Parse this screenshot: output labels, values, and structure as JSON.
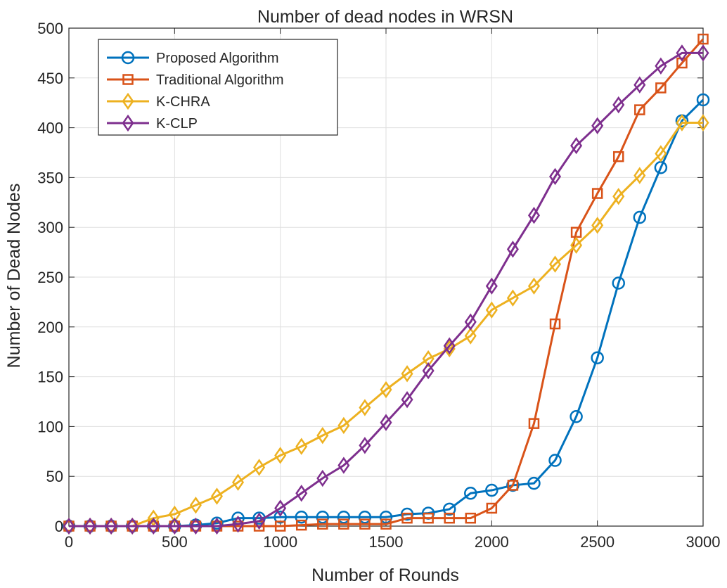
{
  "chart_data": {
    "type": "line",
    "title": "Number of dead nodes in WRSN",
    "xlabel": "Number of Rounds",
    "ylabel": "Number of Dead Nodes",
    "xlim": [
      0,
      3000
    ],
    "ylim": [
      0,
      500
    ],
    "xticks": [
      0,
      500,
      1000,
      1500,
      2000,
      2500,
      3000
    ],
    "yticks": [
      0,
      50,
      100,
      150,
      200,
      250,
      300,
      350,
      400,
      450,
      500
    ],
    "grid": true,
    "legend_position": "top-left",
    "x": [
      0,
      100,
      200,
      300,
      400,
      500,
      600,
      700,
      800,
      900,
      1000,
      1100,
      1200,
      1300,
      1400,
      1500,
      1600,
      1700,
      1800,
      1900,
      2000,
      2100,
      2200,
      2300,
      2400,
      2500,
      2600,
      2700,
      2800,
      2900,
      3000
    ],
    "series": [
      {
        "name": "Proposed Algorithm",
        "color": "#0072BD",
        "marker": "circle",
        "values": [
          0,
          0,
          0,
          0,
          0,
          0,
          1,
          3,
          8,
          8,
          9,
          9,
          9,
          9,
          9,
          9,
          12,
          13,
          17,
          33,
          36,
          41,
          43,
          66,
          110,
          169,
          244,
          310,
          360,
          407,
          428
        ]
      },
      {
        "name": "Traditional Algorithm",
        "color": "#D95319",
        "marker": "square",
        "values": [
          0,
          0,
          0,
          0,
          0,
          0,
          0,
          0,
          0,
          0,
          0,
          1,
          2,
          2,
          2,
          2,
          8,
          8,
          8,
          8,
          18,
          41,
          103,
          203,
          295,
          334,
          371,
          418,
          440,
          465,
          489
        ]
      },
      {
        "name": "K-CHRA",
        "color": "#EDB120",
        "marker": "diamond",
        "values": [
          0,
          0,
          0,
          0,
          8,
          12,
          21,
          30,
          44,
          59,
          71,
          80,
          91,
          101,
          119,
          137,
          153,
          168,
          178,
          191,
          217,
          229,
          241,
          263,
          282,
          302,
          331,
          352,
          374,
          405,
          405
        ]
      },
      {
        "name": "K-CLP",
        "color": "#7E2F8E",
        "marker": "diamond",
        "values": [
          0,
          0,
          0,
          0,
          0,
          0,
          0,
          0,
          2,
          5,
          18,
          33,
          48,
          61,
          81,
          104,
          127,
          156,
          181,
          205,
          241,
          278,
          312,
          351,
          382,
          402,
          423,
          443,
          462,
          475,
          475
        ]
      }
    ]
  }
}
